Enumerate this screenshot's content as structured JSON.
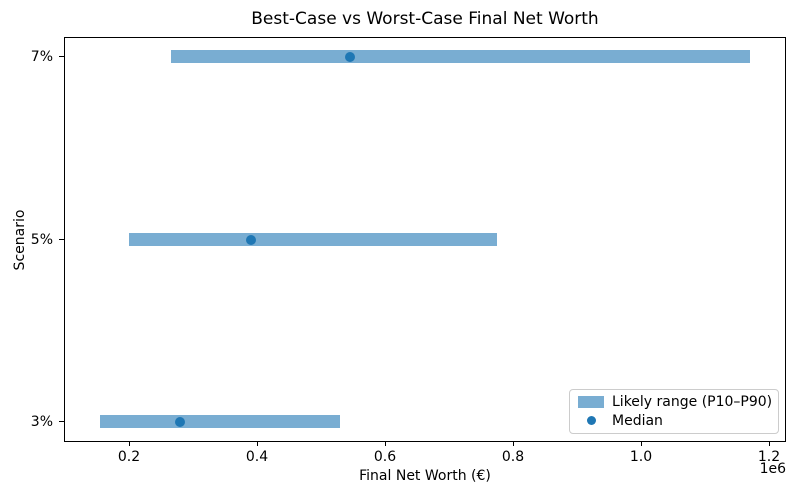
{
  "chart_data": {
    "type": "bar",
    "subtype": "horizontal-range-with-median",
    "title": "Best-Case vs Worst-Case Final Net Worth",
    "xlabel": "Final Net Worth (€)",
    "ylabel": "Scenario",
    "x_offset_label": "1e6",
    "xlim": [
      100000,
      1225000
    ],
    "grid": false,
    "categories": [
      "7%",
      "5%",
      "3%"
    ],
    "rows": [
      {
        "label": "7%",
        "p10": 265000,
        "median": 545000,
        "p90": 1170000
      },
      {
        "label": "5%",
        "p10": 200000,
        "median": 390000,
        "p90": 775000
      },
      {
        "label": "3%",
        "p10": 155000,
        "median": 280000,
        "p90": 530000
      }
    ],
    "x_ticks": {
      "values": [
        200000,
        400000,
        600000,
        800000,
        1000000,
        1200000
      ],
      "labels": [
        "0.2",
        "0.4",
        "0.6",
        "0.8",
        "1.0",
        "1.2"
      ]
    },
    "legend": {
      "position": "lower right",
      "entries": [
        {
          "label": "Likely range (P10–P90)",
          "marker": "patch"
        },
        {
          "label": "Median",
          "marker": "dot"
        }
      ]
    },
    "colors": {
      "range_bar": "#79add2",
      "median_dot": "#1f77b4",
      "axis": "#000000",
      "legend_border": "#cccccc",
      "text": "#000000"
    }
  }
}
